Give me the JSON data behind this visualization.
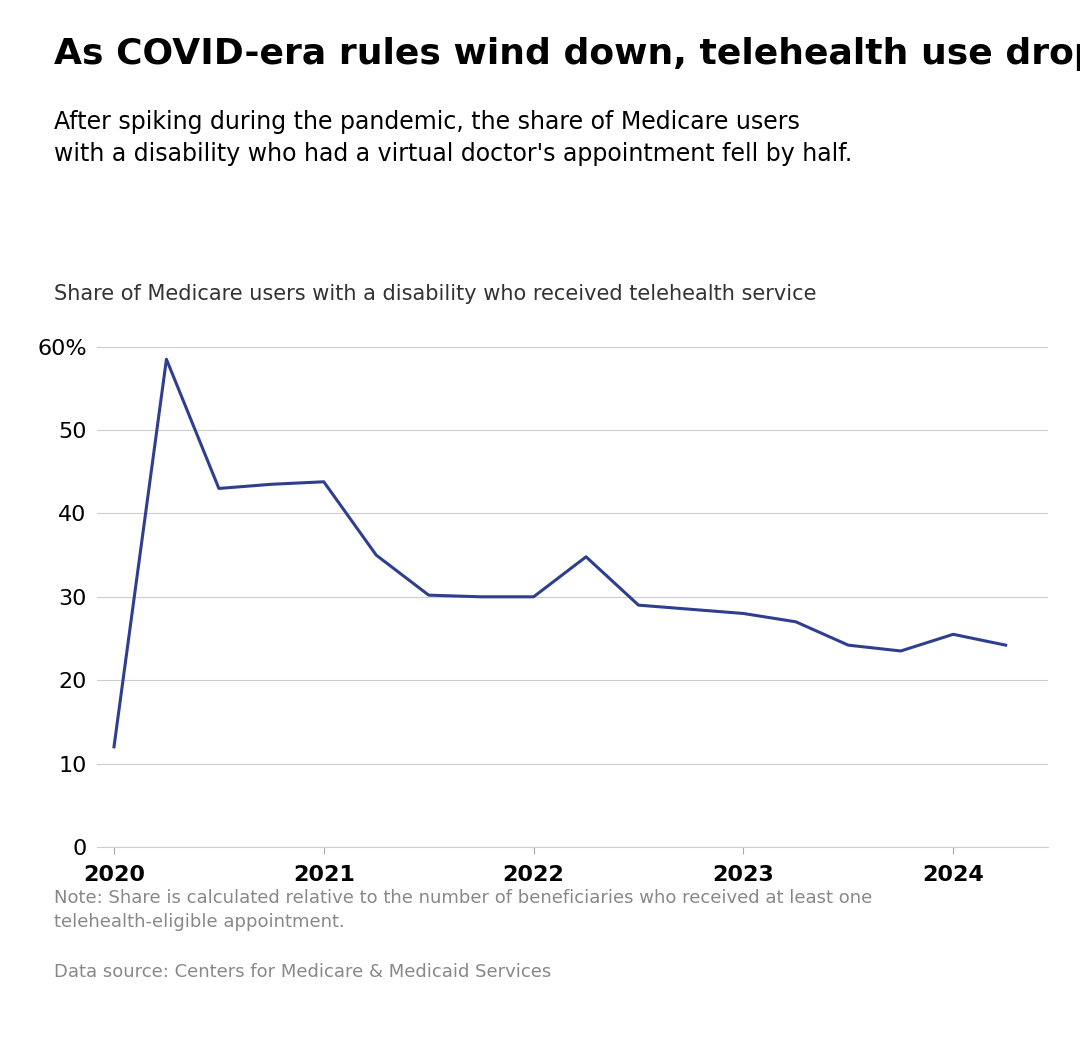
{
  "title": "As COVID-era rules wind down, telehealth use drops",
  "subtitle": "After spiking during the pandemic, the share of Medicare users\nwith a disability who had a virtual doctor's appointment fell by half.",
  "axis_label": "Share of Medicare users with a disability who received telehealth service",
  "note": "Note: Share is calculated relative to the number of beneficiaries who received at least one\ntelehealth-eligible appointment.",
  "source": "Data source: Centers for Medicare & Medicaid Services",
  "x_values": [
    2020.0,
    2020.25,
    2020.5,
    2020.75,
    2021.0,
    2021.25,
    2021.5,
    2021.75,
    2022.0,
    2022.25,
    2022.5,
    2022.75,
    2023.0,
    2023.25,
    2023.5,
    2023.75,
    2024.0,
    2024.25
  ],
  "y_values": [
    12.0,
    58.5,
    43.0,
    43.5,
    43.8,
    35.0,
    30.2,
    30.0,
    30.0,
    34.8,
    29.0,
    28.5,
    28.0,
    27.0,
    24.2,
    23.5,
    25.5,
    24.2
  ],
  "line_color": "#2f3f8f",
  "line_width": 2.2,
  "ylim": [
    0,
    65
  ],
  "yticks": [
    0,
    10,
    20,
    30,
    40,
    50,
    60
  ],
  "ytick_labels": [
    "0",
    "10",
    "20",
    "30",
    "40",
    "50",
    "60%"
  ],
  "xlim": [
    2019.92,
    2024.45
  ],
  "xticks": [
    2020,
    2021,
    2022,
    2023,
    2024
  ],
  "background_color": "#ffffff",
  "grid_color": "#cccccc",
  "title_fontsize": 26,
  "subtitle_fontsize": 17,
  "axis_label_fontsize": 15,
  "note_fontsize": 13,
  "tick_fontsize": 16
}
